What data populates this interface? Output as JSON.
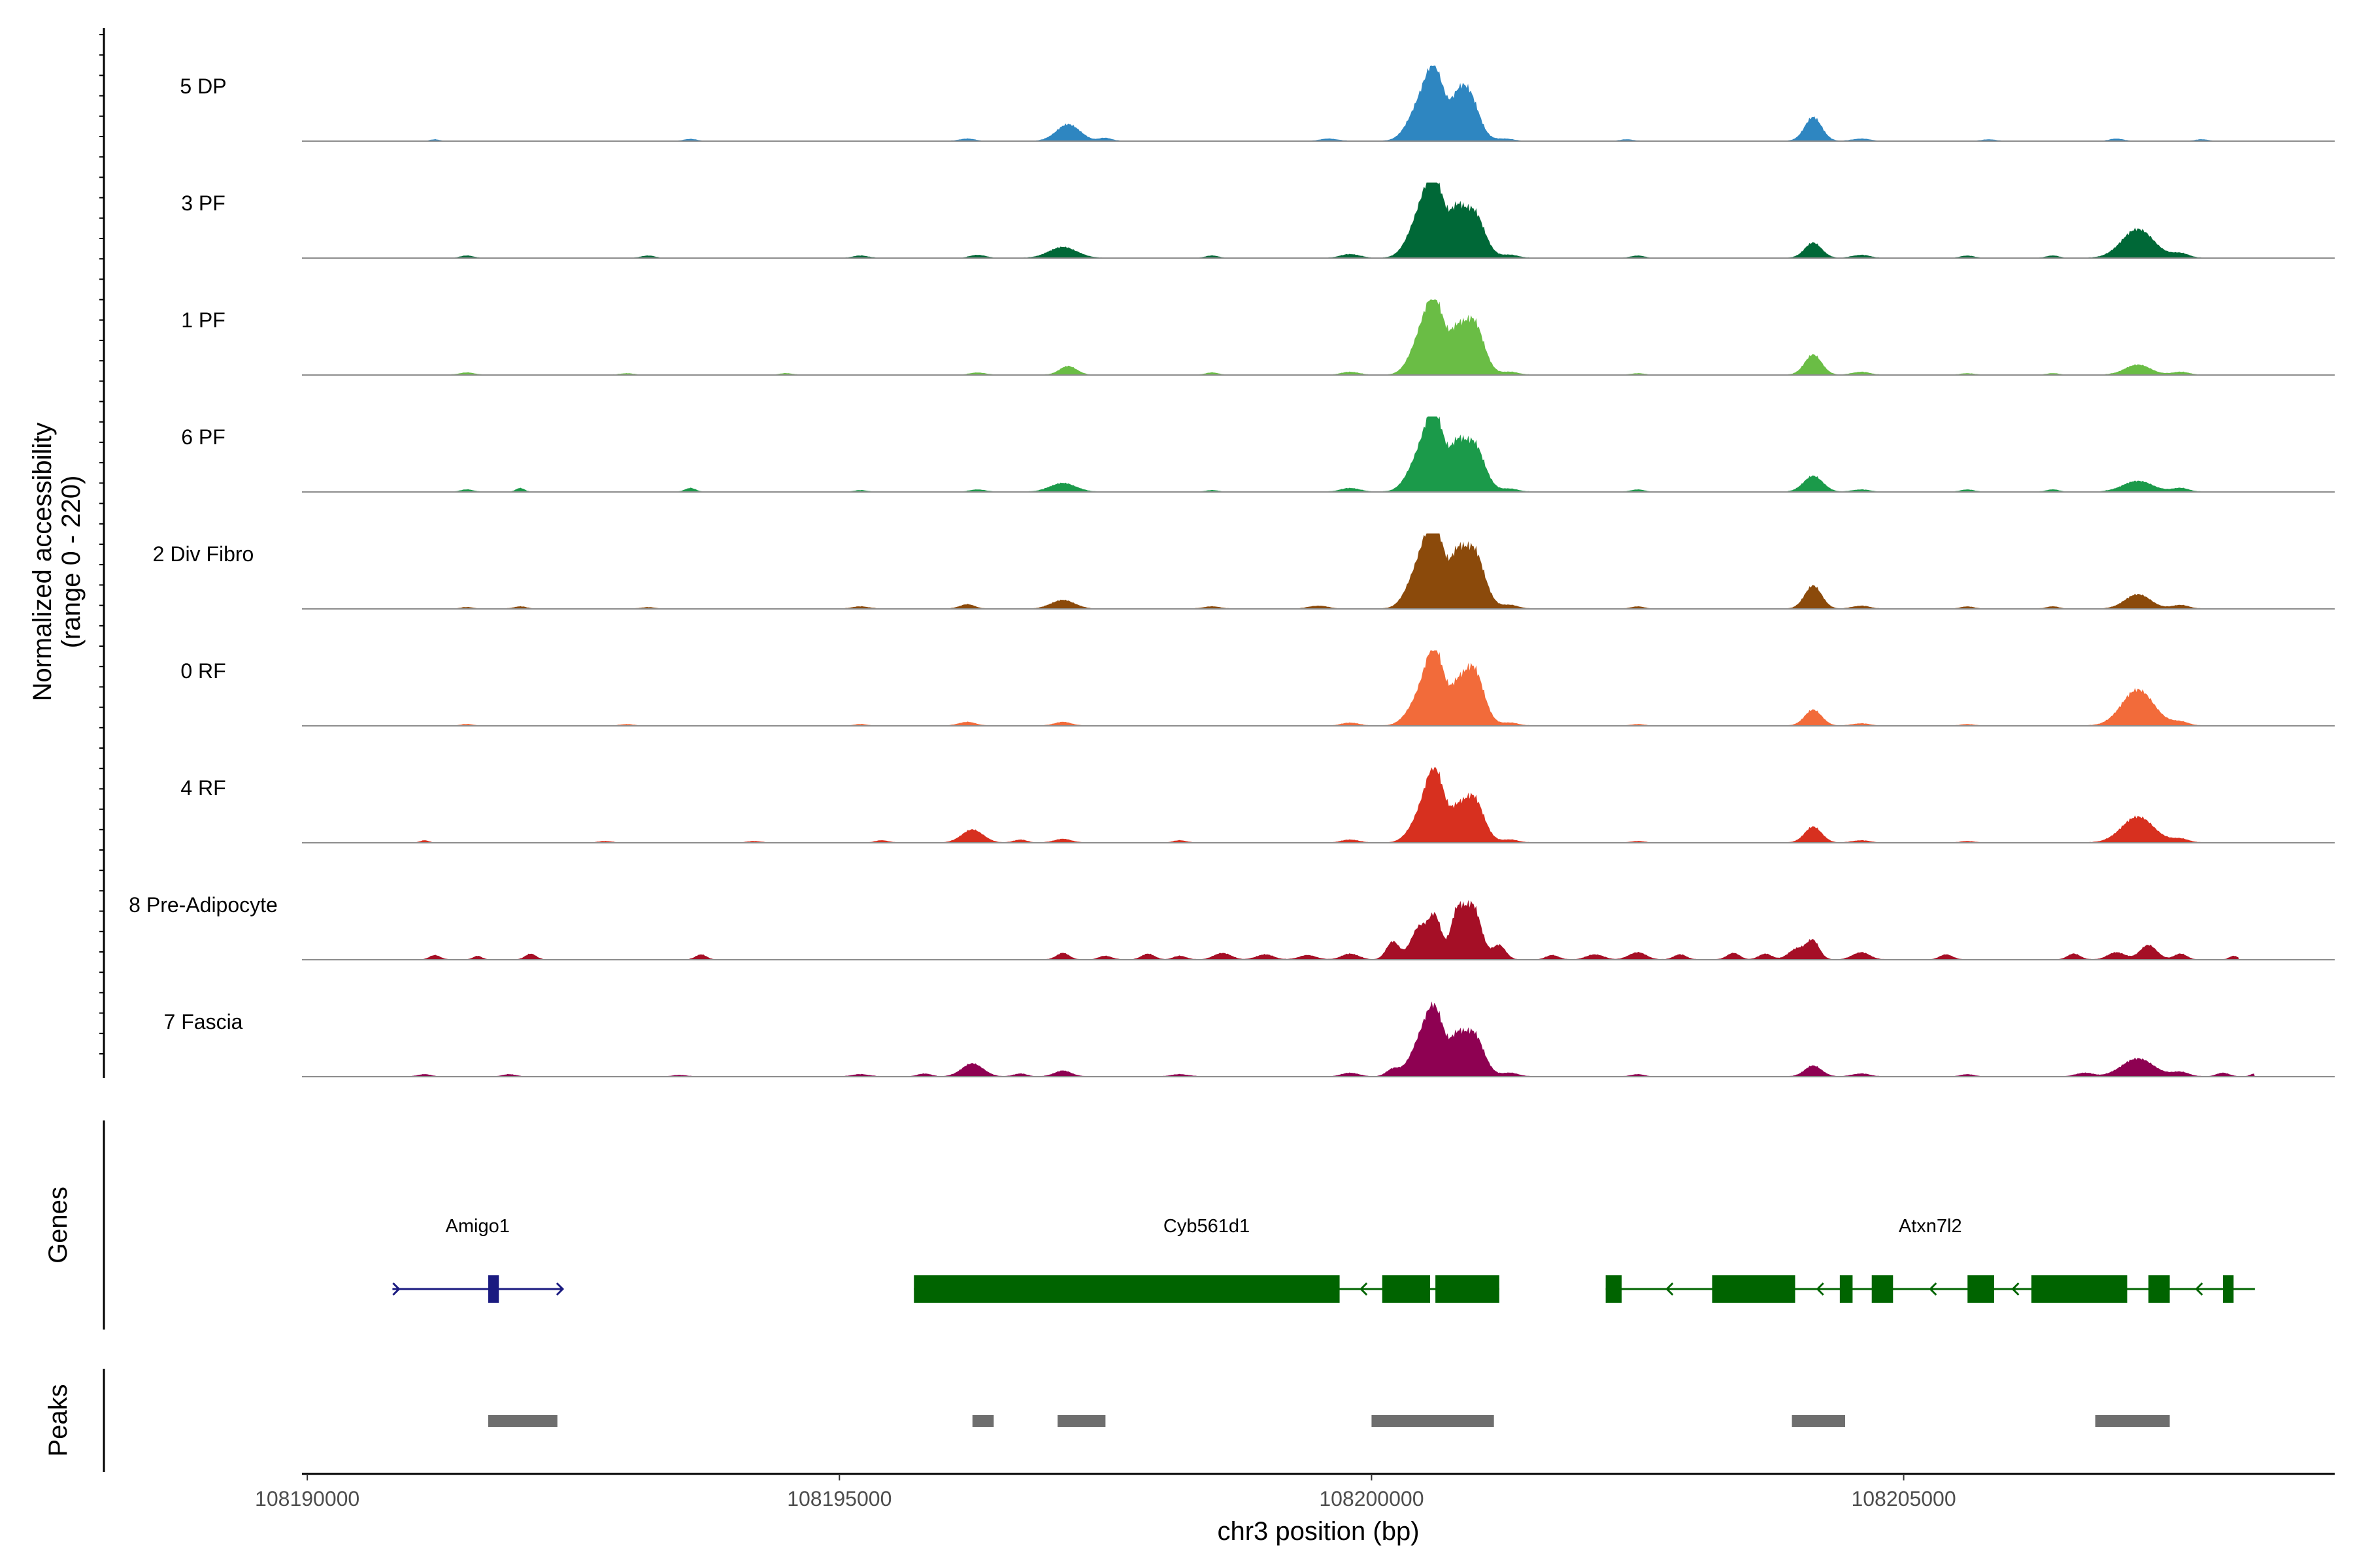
{
  "chart_data": {
    "type": "area",
    "chromosome": "chr3",
    "x_range": [
      108189950,
      108209050
    ],
    "y_range": [
      0,
      220
    ],
    "ylabel": "Normalized accessibility",
    "ylabel_range": "(range 0 - 220)",
    "xlabel": "chr3 position (bp)",
    "x_ticks": [
      108190000,
      108195000,
      108200000,
      108205000
    ],
    "x_tick_labels": [
      "108190000",
      "108195000",
      "108200000",
      "108205000"
    ],
    "tracks": [
      {
        "name": "5 DP",
        "color": "#2E86C1",
        "extent": [
          108190000,
          108208000
        ],
        "peaks": [
          [
            108191200,
            0.02,
            40
          ],
          [
            108193600,
            0.025,
            60
          ],
          [
            108196200,
            0.03,
            70
          ],
          [
            108197150,
            0.23,
            110
          ],
          [
            108197500,
            0.04,
            60
          ],
          [
            108199600,
            0.03,
            80
          ],
          [
            108200450,
            0.45,
            110
          ],
          [
            108200600,
            0.86,
            90
          ],
          [
            108200800,
            0.2,
            60
          ],
          [
            108200900,
            0.7,
            100
          ],
          [
            108201250,
            0.03,
            80
          ],
          [
            108202400,
            0.02,
            60
          ],
          [
            108204150,
            0.33,
            80
          ],
          [
            108204600,
            0.03,
            80
          ],
          [
            108205800,
            0.02,
            60
          ],
          [
            108207000,
            0.03,
            60
          ],
          [
            108207800,
            0.02,
            60
          ]
        ]
      },
      {
        "name": "3 PF",
        "color": "#006837",
        "extent": [
          108190850,
          108208000
        ],
        "peaks": [
          [
            108191500,
            0.03,
            60
          ],
          [
            108193200,
            0.03,
            60
          ],
          [
            108195200,
            0.03,
            70
          ],
          [
            108196300,
            0.04,
            70
          ],
          [
            108197100,
            0.15,
            130
          ],
          [
            108198500,
            0.03,
            60
          ],
          [
            108199800,
            0.05,
            90
          ],
          [
            108200450,
            0.5,
            110
          ],
          [
            108200600,
            0.95,
            95
          ],
          [
            108200800,
            0.4,
            60
          ],
          [
            108200950,
            0.67,
            105
          ],
          [
            108201300,
            0.04,
            80
          ],
          [
            108202500,
            0.03,
            60
          ],
          [
            108204150,
            0.21,
            80
          ],
          [
            108204600,
            0.04,
            80
          ],
          [
            108205600,
            0.03,
            60
          ],
          [
            108206400,
            0.03,
            60
          ],
          [
            108207200,
            0.4,
            150
          ],
          [
            108207600,
            0.06,
            80
          ]
        ]
      },
      {
        "name": "1 PF",
        "color": "#6ABD45",
        "extent": [
          108190850,
          108208000
        ],
        "peaks": [
          [
            108191500,
            0.03,
            70
          ],
          [
            108193000,
            0.02,
            60
          ],
          [
            108194500,
            0.02,
            60
          ],
          [
            108196300,
            0.03,
            70
          ],
          [
            108197150,
            0.12,
            80
          ],
          [
            108198500,
            0.03,
            60
          ],
          [
            108199800,
            0.04,
            80
          ],
          [
            108200450,
            0.4,
            100
          ],
          [
            108200600,
            0.95,
            95
          ],
          [
            108200800,
            0.35,
            60
          ],
          [
            108200950,
            0.77,
            100
          ],
          [
            108201300,
            0.04,
            80
          ],
          [
            108202500,
            0.02,
            60
          ],
          [
            108204150,
            0.28,
            80
          ],
          [
            108204600,
            0.04,
            80
          ],
          [
            108205600,
            0.02,
            60
          ],
          [
            108206400,
            0.02,
            60
          ],
          [
            108207200,
            0.14,
            120
          ],
          [
            108207600,
            0.04,
            80
          ]
        ]
      },
      {
        "name": "6 PF",
        "color": "#1B9A4A",
        "extent": [
          108190850,
          108208300
        ],
        "peaks": [
          [
            108191500,
            0.03,
            60
          ],
          [
            108192000,
            0.05,
            40
          ],
          [
            108193600,
            0.05,
            50
          ],
          [
            108195200,
            0.02,
            60
          ],
          [
            108196300,
            0.03,
            70
          ],
          [
            108197100,
            0.12,
            120
          ],
          [
            108198500,
            0.02,
            60
          ],
          [
            108199800,
            0.05,
            90
          ],
          [
            108200450,
            0.45,
            110
          ],
          [
            108200600,
            0.95,
            90
          ],
          [
            108200800,
            0.4,
            60
          ],
          [
            108200950,
            0.7,
            105
          ],
          [
            108201300,
            0.04,
            80
          ],
          [
            108202500,
            0.03,
            60
          ],
          [
            108204150,
            0.22,
            90
          ],
          [
            108204600,
            0.03,
            80
          ],
          [
            108205600,
            0.03,
            60
          ],
          [
            108206400,
            0.03,
            60
          ],
          [
            108207200,
            0.15,
            140
          ],
          [
            108207600,
            0.05,
            80
          ]
        ]
      },
      {
        "name": "2 Div Fibro",
        "color": "#8B4A0B",
        "extent": [
          108190850,
          108208000
        ],
        "peaks": [
          [
            108191500,
            0.02,
            60
          ],
          [
            108192000,
            0.03,
            60
          ],
          [
            108193200,
            0.02,
            60
          ],
          [
            108195200,
            0.03,
            80
          ],
          [
            108196200,
            0.06,
            70
          ],
          [
            108197100,
            0.12,
            110
          ],
          [
            108198500,
            0.03,
            80
          ],
          [
            108199500,
            0.04,
            90
          ],
          [
            108200450,
            0.55,
            110
          ],
          [
            108200600,
            1.0,
            90
          ],
          [
            108200800,
            0.45,
            60
          ],
          [
            108200950,
            0.85,
            105
          ],
          [
            108201300,
            0.05,
            80
          ],
          [
            108202500,
            0.03,
            60
          ],
          [
            108204150,
            0.32,
            80
          ],
          [
            108204600,
            0.04,
            80
          ],
          [
            108205600,
            0.03,
            60
          ],
          [
            108206400,
            0.03,
            60
          ],
          [
            108207200,
            0.2,
            120
          ],
          [
            108207600,
            0.05,
            80
          ]
        ]
      },
      {
        "name": "0 RF",
        "color": "#F26B3A",
        "extent": [
          108190850,
          108208000
        ],
        "peaks": [
          [
            108191500,
            0.02,
            60
          ],
          [
            108193000,
            0.02,
            60
          ],
          [
            108195200,
            0.02,
            60
          ],
          [
            108196200,
            0.05,
            80
          ],
          [
            108197100,
            0.05,
            80
          ],
          [
            108199800,
            0.04,
            80
          ],
          [
            108200450,
            0.35,
            110
          ],
          [
            108200600,
            0.95,
            90
          ],
          [
            108200800,
            0.3,
            60
          ],
          [
            108200950,
            0.82,
            100
          ],
          [
            108201300,
            0.04,
            80
          ],
          [
            108202500,
            0.02,
            60
          ],
          [
            108204150,
            0.22,
            80
          ],
          [
            108204600,
            0.03,
            80
          ],
          [
            108205600,
            0.02,
            60
          ],
          [
            108207200,
            0.5,
            150
          ],
          [
            108207600,
            0.05,
            80
          ]
        ]
      },
      {
        "name": "4 RF",
        "color": "#D7301F",
        "extent": [
          108190850,
          108208000
        ],
        "peaks": [
          [
            108191100,
            0.03,
            40
          ],
          [
            108192800,
            0.02,
            60
          ],
          [
            108194200,
            0.02,
            60
          ],
          [
            108195400,
            0.03,
            60
          ],
          [
            108196250,
            0.18,
            100
          ],
          [
            108196700,
            0.04,
            60
          ],
          [
            108197100,
            0.05,
            80
          ],
          [
            108198200,
            0.03,
            60
          ],
          [
            108199800,
            0.04,
            80
          ],
          [
            108200450,
            0.3,
            100
          ],
          [
            108200600,
            0.95,
            90
          ],
          [
            108200800,
            0.25,
            60
          ],
          [
            108200950,
            0.65,
            100
          ],
          [
            108201300,
            0.04,
            80
          ],
          [
            108202500,
            0.02,
            60
          ],
          [
            108204150,
            0.22,
            80
          ],
          [
            108204600,
            0.03,
            80
          ],
          [
            108205600,
            0.02,
            60
          ],
          [
            108207200,
            0.36,
            150
          ],
          [
            108207600,
            0.05,
            80
          ]
        ]
      },
      {
        "name": "8 Pre-Adipocyte",
        "color": "#A50F26",
        "extent": [
          108190850,
          108208150
        ],
        "peaks": [
          [
            108191200,
            0.06,
            50
          ],
          [
            108191600,
            0.05,
            40
          ],
          [
            108192100,
            0.08,
            50
          ],
          [
            108193700,
            0.07,
            50
          ],
          [
            108197100,
            0.09,
            60
          ],
          [
            108197500,
            0.05,
            60
          ],
          [
            108197900,
            0.08,
            60
          ],
          [
            108198200,
            0.05,
            60
          ],
          [
            108198600,
            0.09,
            80
          ],
          [
            108199000,
            0.07,
            80
          ],
          [
            108199400,
            0.06,
            80
          ],
          [
            108199800,
            0.08,
            80
          ],
          [
            108200200,
            0.25,
            60
          ],
          [
            108200450,
            0.45,
            80
          ],
          [
            108200600,
            0.55,
            60
          ],
          [
            108200800,
            0.6,
            60
          ],
          [
            108200950,
            0.75,
            80
          ],
          [
            108201200,
            0.2,
            60
          ],
          [
            108201700,
            0.06,
            60
          ],
          [
            108202100,
            0.07,
            80
          ],
          [
            108202500,
            0.1,
            80
          ],
          [
            108202900,
            0.07,
            60
          ],
          [
            108203400,
            0.09,
            60
          ],
          [
            108203700,
            0.08,
            60
          ],
          [
            108204000,
            0.15,
            80
          ],
          [
            108204150,
            0.25,
            60
          ],
          [
            108204600,
            0.1,
            80
          ],
          [
            108205400,
            0.07,
            60
          ],
          [
            108206600,
            0.08,
            60
          ],
          [
            108207000,
            0.1,
            80
          ],
          [
            108207300,
            0.2,
            80
          ],
          [
            108207600,
            0.08,
            60
          ],
          [
            108208100,
            0.05,
            40
          ]
        ]
      },
      {
        "name": "7 Fascia",
        "color": "#8E0152",
        "extent": [
          108190850,
          108208300
        ],
        "peaks": [
          [
            108191100,
            0.03,
            60
          ],
          [
            108191900,
            0.03,
            60
          ],
          [
            108193500,
            0.02,
            60
          ],
          [
            108195200,
            0.03,
            80
          ],
          [
            108195800,
            0.04,
            60
          ],
          [
            108196250,
            0.18,
            100
          ],
          [
            108196700,
            0.04,
            60
          ],
          [
            108197100,
            0.08,
            80
          ],
          [
            108198200,
            0.03,
            80
          ],
          [
            108199800,
            0.05,
            80
          ],
          [
            108200200,
            0.1,
            60
          ],
          [
            108200450,
            0.4,
            100
          ],
          [
            108200600,
            0.85,
            90
          ],
          [
            108200800,
            0.35,
            60
          ],
          [
            108200950,
            0.62,
            100
          ],
          [
            108201300,
            0.05,
            80
          ],
          [
            108202500,
            0.03,
            60
          ],
          [
            108204150,
            0.15,
            80
          ],
          [
            108204600,
            0.04,
            80
          ],
          [
            108205600,
            0.03,
            60
          ],
          [
            108206700,
            0.05,
            80
          ],
          [
            108207200,
            0.25,
            150
          ],
          [
            108207600,
            0.06,
            80
          ],
          [
            108208000,
            0.05,
            60
          ],
          [
            108208300,
            0.04,
            40
          ]
        ]
      }
    ],
    "genes": [
      {
        "name": "Amigo1",
        "color": "#1A1A80",
        "strand": "+",
        "line": [
          108190800,
          108192400
        ],
        "exons": [
          [
            108191700,
            108191800
          ]
        ]
      },
      {
        "name": "Cyb561d1",
        "color": "#006400",
        "strand": "-",
        "line": [
          108195700,
          108201200
        ],
        "exons": [
          [
            108195700,
            108199700
          ],
          [
            108200100,
            108200550
          ],
          [
            108200600,
            108201200
          ]
        ]
      },
      {
        "name": "Atxn7l2",
        "color": "#006400",
        "strand": "-",
        "line": [
          108202200,
          108208300
        ],
        "exons": [
          [
            108202200,
            108202350
          ],
          [
            108203200,
            108203980
          ],
          [
            108204400,
            108204520
          ],
          [
            108204700,
            108204900
          ],
          [
            108205600,
            108205850
          ],
          [
            108206200,
            108207100
          ],
          [
            108207300,
            108207500
          ],
          [
            108208000,
            108208100
          ]
        ]
      }
    ],
    "peak_regions": [
      [
        108191700,
        108192350
      ],
      [
        108196250,
        108196450
      ],
      [
        108197050,
        108197500
      ],
      [
        108200000,
        108201150
      ],
      [
        108203950,
        108204450
      ],
      [
        108206800,
        108207500
      ]
    ],
    "panel_titles": {
      "genes": "Genes",
      "peaks": "Peaks"
    }
  }
}
